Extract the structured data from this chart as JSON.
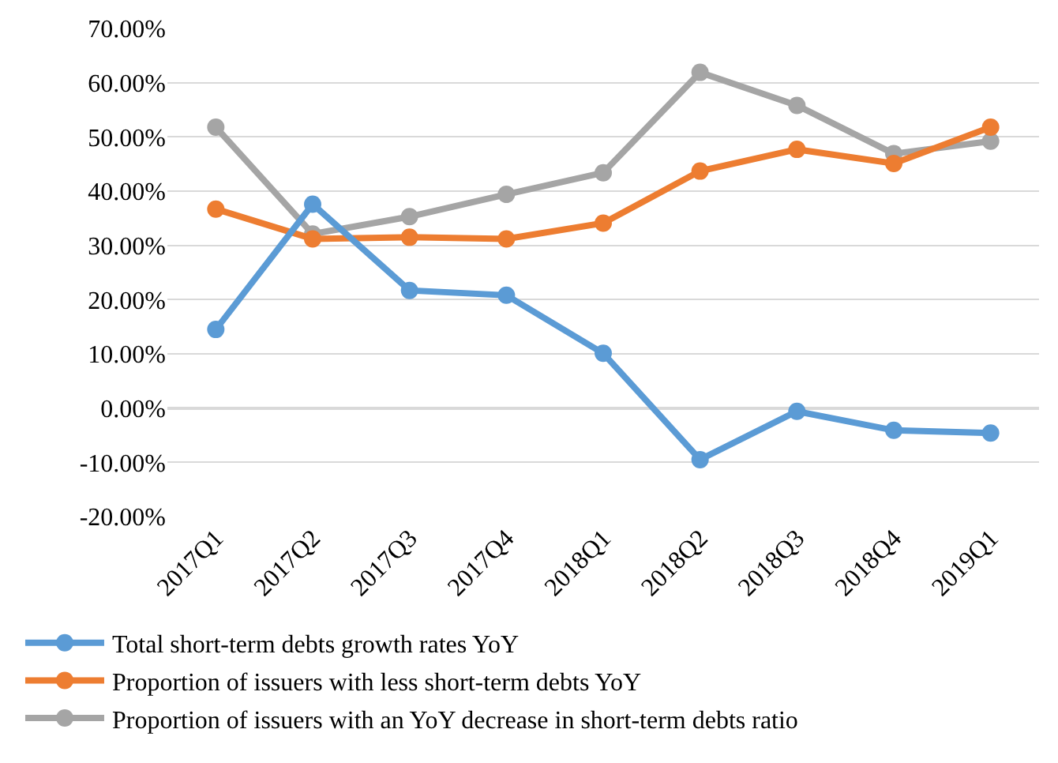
{
  "chart_data": {
    "type": "line",
    "categories": [
      "2017Q1",
      "2017Q2",
      "2017Q3",
      "2017Q4",
      "2018Q1",
      "2018Q2",
      "2018Q3",
      "2018Q4",
      "2019Q1"
    ],
    "series": [
      {
        "name": "Total short-term debts growth rates YoY",
        "color": "#5b9bd5",
        "values": [
          14.5,
          37.6,
          21.7,
          20.8,
          10.1,
          -9.5,
          -0.6,
          -4.1,
          -4.6
        ]
      },
      {
        "name": "Proportion of issuers with less short-term debts YoY",
        "color": "#ed7d31",
        "values": [
          36.7,
          31.2,
          31.5,
          31.2,
          34.1,
          43.7,
          47.7,
          45.1,
          51.8
        ]
      },
      {
        "name": "Proportion of issuers with an YoY decrease in short-term debts ratio",
        "color": "#a5a5a5",
        "values": [
          51.8,
          32.1,
          35.3,
          39.4,
          43.4,
          61.9,
          55.8,
          46.9,
          49.2
        ]
      }
    ],
    "ylim": [
      -20,
      70
    ],
    "yticks": [
      {
        "value": -20,
        "label": "-20.00%"
      },
      {
        "value": -10,
        "label": "-10.00%"
      },
      {
        "value": 0,
        "label": "0.00%"
      },
      {
        "value": 10,
        "label": "10.00%"
      },
      {
        "value": 20,
        "label": "20.00%"
      },
      {
        "value": 30,
        "label": "30.00%"
      },
      {
        "value": 40,
        "label": "40.00%"
      },
      {
        "value": 50,
        "label": "50.00%"
      },
      {
        "value": 60,
        "label": "60.00%"
      },
      {
        "value": 70,
        "label": "70.00%"
      }
    ],
    "grid": "y",
    "legend": "bottom",
    "marker": "circle",
    "line_style": "solid"
  }
}
